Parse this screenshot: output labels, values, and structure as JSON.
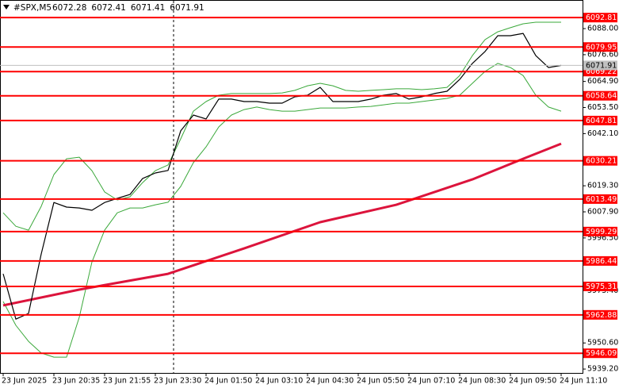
{
  "chart_data": {
    "type": "line",
    "title": "#SPX,M5",
    "ohlc": [
      6072.28,
      6072.41,
      6071.41,
      6071.91
    ],
    "current_price": 6071.91,
    "xlim": [
      -0.25,
      45.6875
    ],
    "ylim": [
      5937.5,
      6100.5
    ],
    "yticks": [
      {
        "value": 6088,
        "label": "6088.00"
      },
      {
        "value": 6076.6,
        "label": "6076.60"
      },
      {
        "value": 6064.9,
        "label": "6064.90"
      },
      {
        "value": 6053.5,
        "label": "6053.50"
      },
      {
        "value": 6042.1,
        "label": "6042.10"
      },
      {
        "value": 6019.3,
        "label": "6019.30"
      },
      {
        "value": 6007.9,
        "label": "6007.90"
      },
      {
        "value": 5996.5,
        "label": "5996.50"
      },
      {
        "value": 5973.4,
        "label": "5973.40"
      },
      {
        "value": 5950.6,
        "label": "5950.60"
      },
      {
        "value": 5939.2,
        "label": "5939.20"
      }
    ],
    "xticks": [
      {
        "value": 0,
        "label": "23 Jun 2025"
      },
      {
        "value": 4,
        "label": "23 Jun 20:35"
      },
      {
        "value": 8,
        "label": "23 Jun 21:55"
      },
      {
        "value": 12,
        "label": "23 Jun 23:30"
      },
      {
        "value": 16,
        "label": "24 Jun 01:50"
      },
      {
        "value": 20,
        "label": "24 Jun 03:10"
      },
      {
        "value": 24,
        "label": "24 Jun 04:30"
      },
      {
        "value": 28,
        "label": "24 Jun 05:50"
      },
      {
        "value": 32,
        "label": "24 Jun 07:10"
      },
      {
        "value": 36,
        "label": "24 Jun 08:30"
      },
      {
        "value": 40,
        "label": "24 Jun 09:50"
      },
      {
        "value": 44,
        "label": "24 Jun 11:10"
      }
    ],
    "levels": {
      "color": "#ff0000",
      "values": [
        6092.81,
        6079.95,
        6069.22,
        6058.64,
        6047.81,
        6030.21,
        6013.49,
        5999.29,
        5986.44,
        5975.31,
        5962.88,
        5946.09
      ]
    },
    "series": [
      {
        "color": "#3aa83a",
        "width": 1,
        "values": [
          6007.5,
          6001.6,
          5999.9,
          6010.3,
          6024.2,
          6031.1,
          6031.8,
          6025.9,
          6016.6,
          6013.1,
          6014.5,
          6020.7,
          6025.9,
          6028.4,
          6039.8,
          6051.9,
          6056.1,
          6058.9,
          6059.6,
          6059.6,
          6059.6,
          6059.6,
          6059.9,
          6061.0,
          6063.0,
          6064.1,
          6063.0,
          6061.0,
          6060.6,
          6061.0,
          6061.3,
          6061.7,
          6061.7,
          6061.3,
          6061.7,
          6062.3,
          6067.5,
          6076.2,
          6083.2,
          6086.6,
          6088.4,
          6090.1,
          6090.8,
          6090.8,
          6090.8
        ]
      },
      {
        "color": "#3aa83a",
        "width": 1,
        "values": [
          5968.7,
          5958.3,
          5951.3,
          5946.2,
          5944.4,
          5944.4,
          5961.8,
          5986.0,
          5999.9,
          6007.5,
          6009.6,
          6009.6,
          6011.0,
          6012.1,
          6019.0,
          6029.4,
          6036.3,
          6045.0,
          6050.2,
          6052.6,
          6053.7,
          6052.6,
          6051.9,
          6051.9,
          6052.6,
          6053.3,
          6053.3,
          6053.3,
          6053.7,
          6054.0,
          6054.7,
          6055.4,
          6055.4,
          6056.1,
          6056.8,
          6057.5,
          6058.9,
          6064.1,
          6069.3,
          6072.8,
          6071.0,
          6067.5,
          6058.9,
          6053.7,
          6051.9
        ]
      },
      {
        "color": "#dc143c",
        "width": 3,
        "x": [
          0,
          6,
          13,
          19,
          25,
          31,
          37,
          41,
          44
        ],
        "values": [
          5967.0,
          5973.9,
          5980.8,
          5991.9,
          6003.4,
          6011.0,
          6022.1,
          6031.1,
          6037.7
        ]
      },
      {
        "color": "#000000",
        "width": 1.2,
        "values": [
          5980.8,
          5961.0,
          5963.5,
          5989.5,
          6012.0,
          6010.0,
          6009.6,
          6008.6,
          6012.0,
          6013.8,
          6015.5,
          6022.5,
          6024.9,
          6026.0,
          6043.3,
          6050.2,
          6048.5,
          6057.2,
          6057.2,
          6056.1,
          6056.1,
          6055.4,
          6055.4,
          6058.2,
          6058.9,
          6062.3,
          6056.1,
          6056.1,
          6056.1,
          6057.2,
          6058.9,
          6059.6,
          6057.2,
          6058.2,
          6059.6,
          6060.6,
          6065.8,
          6072.8,
          6078.0,
          6084.9,
          6084.9,
          6085.9,
          6076.2,
          6071.0,
          6071.91
        ]
      }
    ]
  }
}
